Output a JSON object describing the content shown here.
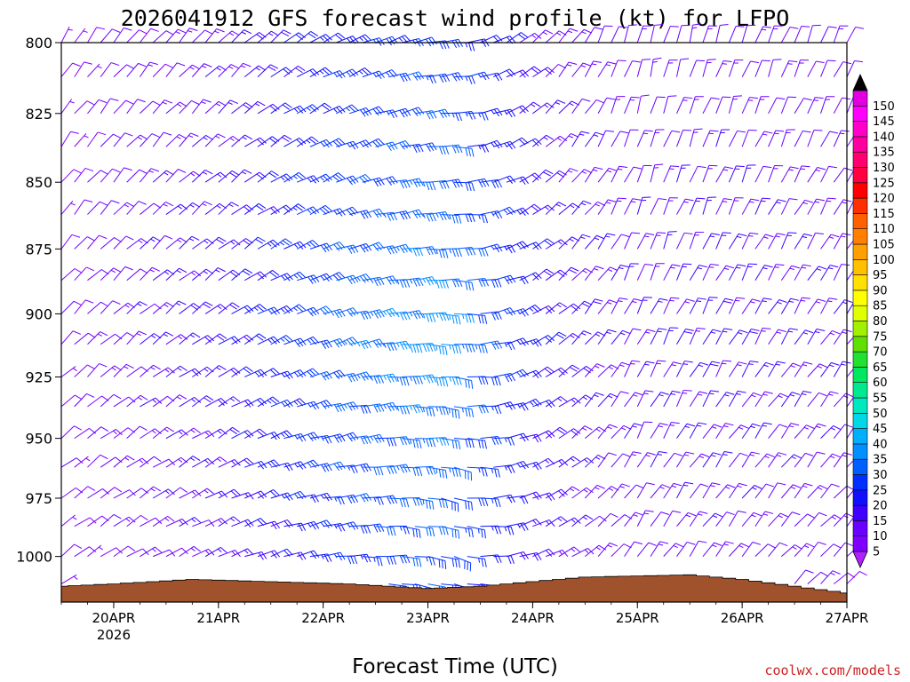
{
  "chart_data": {
    "type": "wind-barb-time-height",
    "title": "2026041912 GFS forecast wind profile (kt) for LFPO",
    "xlabel": "Forecast Time (UTC)",
    "ylabel": "",
    "credit": "coolwx.com/models",
    "x_range_hours": [
      0,
      180
    ],
    "x_ticks": [
      {
        "hour": 12,
        "label": "20APR",
        "sublabel": "2026"
      },
      {
        "hour": 36,
        "label": "21APR",
        "sublabel": ""
      },
      {
        "hour": 60,
        "label": "22APR",
        "sublabel": ""
      },
      {
        "hour": 84,
        "label": "23APR",
        "sublabel": ""
      },
      {
        "hour": 108,
        "label": "24APR",
        "sublabel": ""
      },
      {
        "hour": 132,
        "label": "25APR",
        "sublabel": ""
      },
      {
        "hour": 156,
        "label": "26APR",
        "sublabel": ""
      },
      {
        "hour": 180,
        "label": "27APR",
        "sublabel": ""
      }
    ],
    "ylim_hpa": [
      800,
      1020
    ],
    "y_ticks": [
      {
        "value": 800,
        "label": "800"
      },
      {
        "value": 825,
        "label": "825"
      },
      {
        "value": 850,
        "label": "850"
      },
      {
        "value": 875,
        "label": "875"
      },
      {
        "value": 900,
        "label": "900"
      },
      {
        "value": 925,
        "label": "925"
      },
      {
        "value": 950,
        "label": "950"
      },
      {
        "value": 975,
        "label": "975"
      },
      {
        "value": 1000,
        "label": "1000"
      }
    ],
    "barb_levels_hpa": [
      800,
      812,
      825,
      837,
      850,
      862,
      875,
      887,
      900,
      912,
      925,
      937,
      950,
      962,
      975,
      987,
      1000,
      1012
    ],
    "barb_time_step_hours": 3,
    "wind_speed_keyframes_kt": [
      {
        "hour": 0,
        "speed": 8
      },
      {
        "hour": 12,
        "speed": 11
      },
      {
        "hour": 36,
        "speed": 16
      },
      {
        "hour": 60,
        "speed": 27
      },
      {
        "hour": 84,
        "speed": 32
      },
      {
        "hour": 96,
        "speed": 25
      },
      {
        "hour": 110,
        "speed": 16
      },
      {
        "hour": 128,
        "speed": 12
      },
      {
        "hour": 150,
        "speed": 14
      },
      {
        "hour": 180,
        "speed": 12
      }
    ],
    "wind_direction_keyframes_deg": [
      {
        "hour": 0,
        "dir": 35
      },
      {
        "hour": 36,
        "dir": 45
      },
      {
        "hour": 66,
        "dir": 65
      },
      {
        "hour": 90,
        "dir": 85
      },
      {
        "hour": 110,
        "dir": 45
      },
      {
        "hour": 132,
        "dir": 15
      },
      {
        "hour": 180,
        "dir": 25
      }
    ],
    "surface_pressure_keyframes_hpa": [
      {
        "hour": 0,
        "p": 1013
      },
      {
        "hour": 12,
        "p": 1012
      },
      {
        "hour": 30,
        "p": 1010
      },
      {
        "hour": 48,
        "p": 1011
      },
      {
        "hour": 66,
        "p": 1012
      },
      {
        "hour": 84,
        "p": 1014
      },
      {
        "hour": 96,
        "p": 1013
      },
      {
        "hour": 108,
        "p": 1011
      },
      {
        "hour": 120,
        "p": 1009
      },
      {
        "hour": 144,
        "p": 1008
      },
      {
        "hour": 156,
        "p": 1010
      },
      {
        "hour": 168,
        "p": 1013
      },
      {
        "hour": 180,
        "p": 1016
      }
    ],
    "terrain_color": "#a0522d",
    "colorbar": {
      "min_label": "5",
      "max_label": "150",
      "levels": [
        5,
        10,
        15,
        20,
        25,
        30,
        35,
        40,
        45,
        50,
        55,
        60,
        65,
        70,
        75,
        80,
        85,
        90,
        95,
        100,
        105,
        110,
        115,
        120,
        125,
        130,
        135,
        140,
        145,
        150
      ],
      "labels": [
        "5",
        "10",
        "15",
        "20",
        "25",
        "30",
        "35",
        "40",
        "45",
        "50",
        "55",
        "60",
        "65",
        "70",
        "75",
        "80",
        "85",
        "90",
        "95",
        "100",
        "105",
        "110",
        "115",
        "120",
        "125",
        "130",
        "135",
        "140",
        "145",
        "150"
      ],
      "colors": [
        "#8000ff",
        "#6a00ff",
        "#3f00ff",
        "#1010ff",
        "#0030ff",
        "#0060ff",
        "#0090ff",
        "#00b0ff",
        "#00d8e8",
        "#00e8c0",
        "#00e890",
        "#00e860",
        "#20e030",
        "#60e000",
        "#a0f000",
        "#e0ff00",
        "#ffff00",
        "#ffe000",
        "#ffc000",
        "#ffa000",
        "#ff8000",
        "#ff6000",
        "#ff3000",
        "#ff0000",
        "#ff0040",
        "#ff0070",
        "#ff00a0",
        "#ff00c8",
        "#ff00ff",
        "#e000e0"
      ],
      "low_color": "#b020ff",
      "high_color": "#000000"
    }
  }
}
